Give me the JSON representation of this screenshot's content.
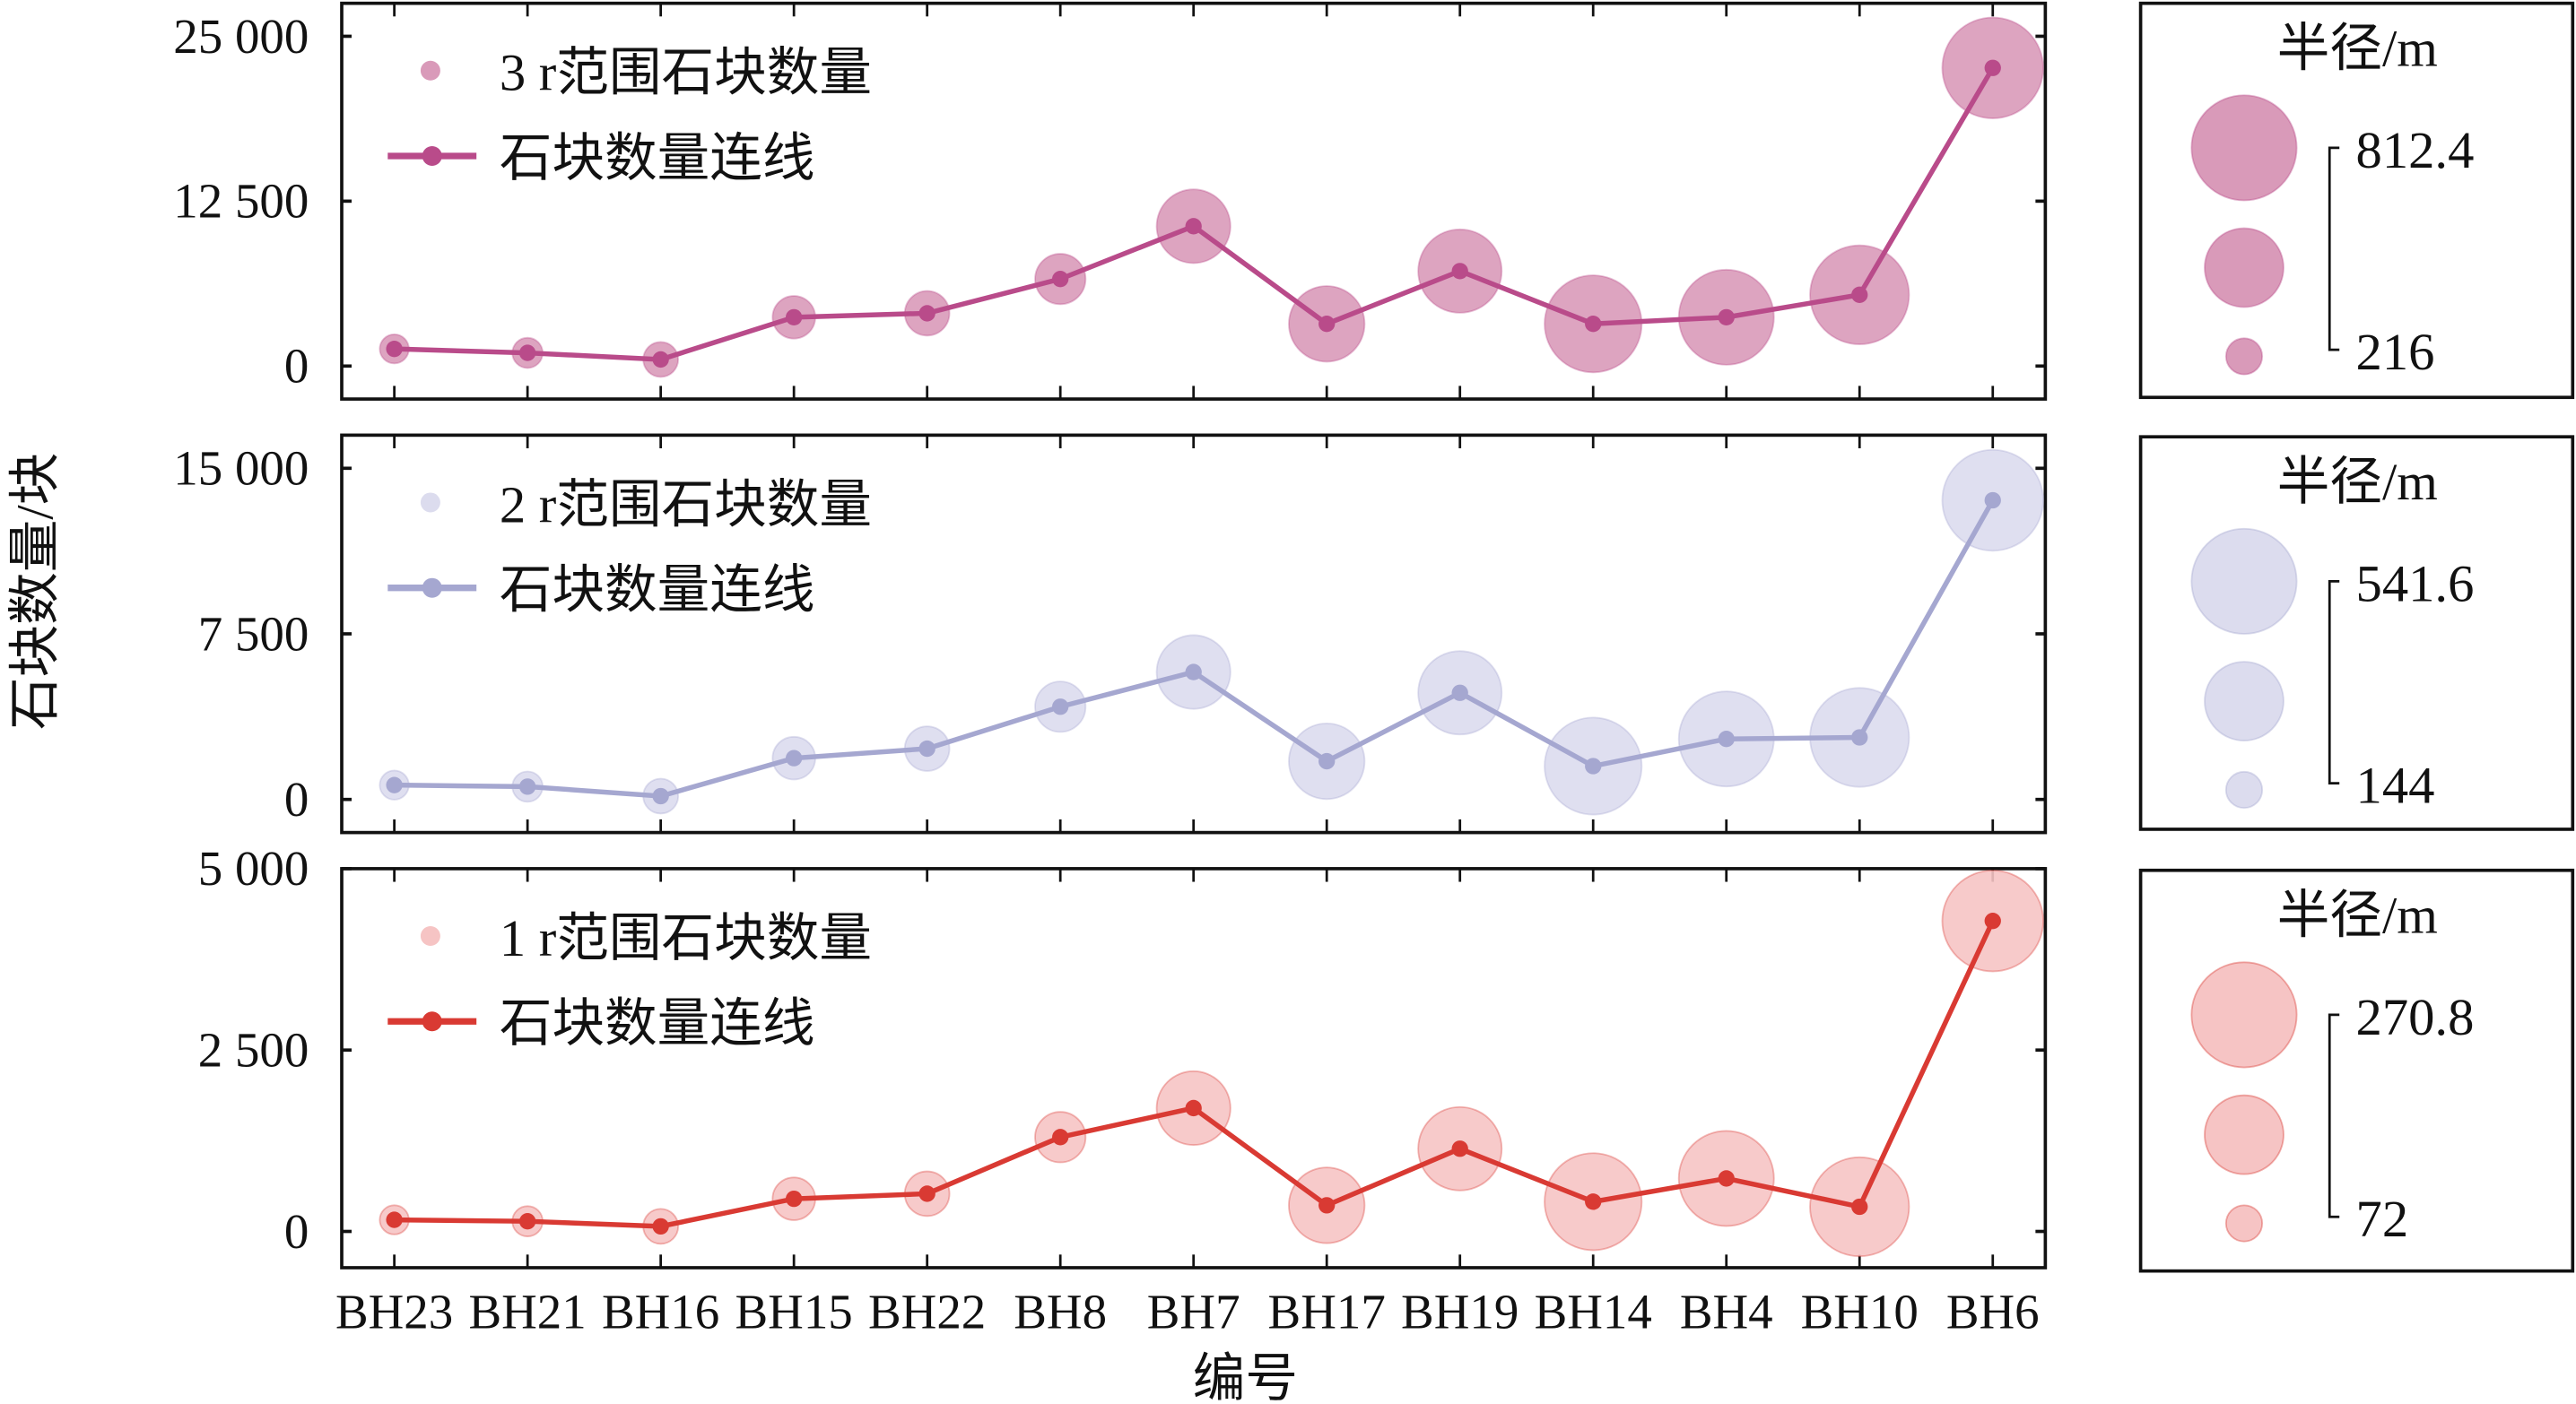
{
  "chart_data": [
    {
      "type": "scatter",
      "subtype": "bubble-with-line",
      "categories": [
        "BH23",
        "BH21",
        "BH16",
        "BH15",
        "BH22",
        "BH8",
        "BH7",
        "BH17",
        "BH19",
        "BH14",
        "BH4",
        "BH10",
        "BH6"
      ],
      "series": [
        {
          "name": "3 r范围石块数量",
          "line_name": "石块数量连线",
          "values": [
            1300,
            1000,
            500,
            3700,
            4000,
            6600,
            10600,
            3200,
            7200,
            3200,
            3700,
            5400,
            22600
          ],
          "radius_m": [
            225,
            234,
            270,
            330,
            345,
            390,
            570,
            585,
            645,
            750,
            735,
            765,
            780
          ],
          "bubble_color": "#d99ab9",
          "line_color": "#b94b8a"
        }
      ],
      "ylim": [
        -2500,
        27500
      ],
      "yticks": [
        {
          "v": 0,
          "label": "0"
        },
        {
          "v": 12500,
          "label": "12 500"
        },
        {
          "v": 25000,
          "label": "25 000"
        }
      ],
      "size_legend": {
        "title": "半径/m",
        "max_label": "812.4",
        "min_label": "216",
        "max": 812.4,
        "min": 216
      }
    },
    {
      "type": "scatter",
      "subtype": "bubble-with-line",
      "categories": [
        "BH23",
        "BH21",
        "BH16",
        "BH15",
        "BH22",
        "BH8",
        "BH7",
        "BH17",
        "BH19",
        "BH14",
        "BH4",
        "BH10",
        "BH6"
      ],
      "series": [
        {
          "name": "2 r范围石块数量",
          "line_name": "石块数量连线",
          "values": [
            650,
            580,
            150,
            1870,
            2300,
            4200,
            5770,
            1730,
            4830,
            1510,
            2740,
            2810,
            13550
          ],
          "radius_m": [
            150,
            156,
            180,
            220,
            230,
            260,
            380,
            390,
            430,
            500,
            490,
            510,
            520
          ],
          "bubble_color": "#dcdcee",
          "line_color": "#a5a7d0"
        }
      ],
      "ylim": [
        -1500,
        16500
      ],
      "yticks": [
        {
          "v": 0,
          "label": "0"
        },
        {
          "v": 7500,
          "label": "7 500"
        },
        {
          "v": 15000,
          "label": "15 000"
        }
      ],
      "size_legend": {
        "title": "半径/m",
        "max_label": "541.6",
        "min_label": "144",
        "max": 541.6,
        "min": 144
      }
    },
    {
      "type": "scatter",
      "subtype": "bubble-with-line",
      "categories": [
        "BH23",
        "BH21",
        "BH16",
        "BH15",
        "BH22",
        "BH8",
        "BH7",
        "BH17",
        "BH19",
        "BH14",
        "BH4",
        "BH10",
        "BH6"
      ],
      "series": [
        {
          "name": "1 r范围石块数量",
          "line_name": "石块数量连线",
          "values": [
            160,
            140,
            70,
            450,
            520,
            1300,
            1700,
            360,
            1140,
            410,
            730,
            340,
            4280
          ],
          "radius_m": [
            75,
            78,
            90,
            110,
            115,
            130,
            190,
            195,
            215,
            250,
            245,
            255,
            260
          ],
          "bubble_color": "#f6c4c4",
          "line_color": "#d93a33"
        }
      ],
      "ylim": [
        -500,
        5000
      ],
      "yticks": [
        {
          "v": 0,
          "label": "0"
        },
        {
          "v": 2500,
          "label": "2 500"
        },
        {
          "v": 5000,
          "label": "5 000"
        }
      ],
      "size_legend": {
        "title": "半径/m",
        "max_label": "270.8",
        "min_label": "72",
        "max": 270.8,
        "min": 72
      }
    }
  ],
  "ylabel": "石块数量/块",
  "xlabel": "编号"
}
